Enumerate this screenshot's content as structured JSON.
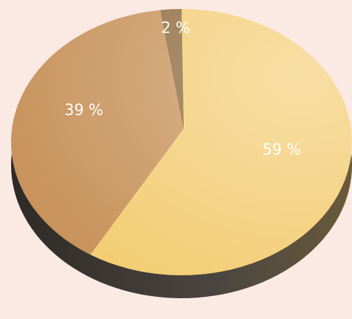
{
  "chart_data": {
    "type": "pie",
    "values": [
      59,
      39,
      2
    ],
    "value_labels": [
      "59 %",
      "39 %",
      "2 %"
    ],
    "colors": [
      "#f3cd74",
      "#c8935c",
      "#8f6a3e"
    ]
  }
}
